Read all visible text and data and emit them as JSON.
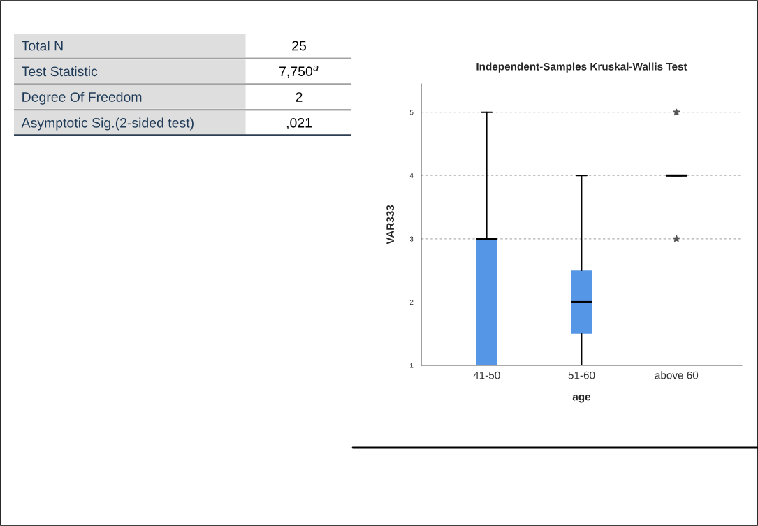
{
  "chart_data": [
    {
      "type": "other",
      "annotations": [
        "Total N",
        "25",
        "Test Statistic",
        "7,750$^{a}$",
        "Degree Of Freedom",
        "2",
        "Asymptotic Sig.(2-sided test)",
        ",021"
      ]
    },
    {
      "type": "box",
      "title": "Independent-Samples Kruskal-Wallis Test",
      "xlabel": "age",
      "ylabel": "VAR333",
      "categories": [
        "41-50",
        "51-60",
        "above 60"
      ],
      "boxes": [
        {
          "low": 1,
          "q1": 1,
          "median": 3,
          "q3": 3,
          "high": 5
        },
        {
          "low": 1,
          "q1": 1.5,
          "median": 2,
          "q3": 2.5,
          "high": 4
        },
        {
          "low": 4,
          "q1": 4,
          "median": 4,
          "q3": 4,
          "high": 4,
          "outliers": [
            5,
            3
          ]
        }
      ],
      "colors": [
        "#5596e6",
        "#5596e6",
        null
      ],
      "ylim": [
        1,
        5.45
      ],
      "yticks": [
        1,
        2,
        3,
        4,
        5
      ],
      "grid": "y"
    }
  ]
}
